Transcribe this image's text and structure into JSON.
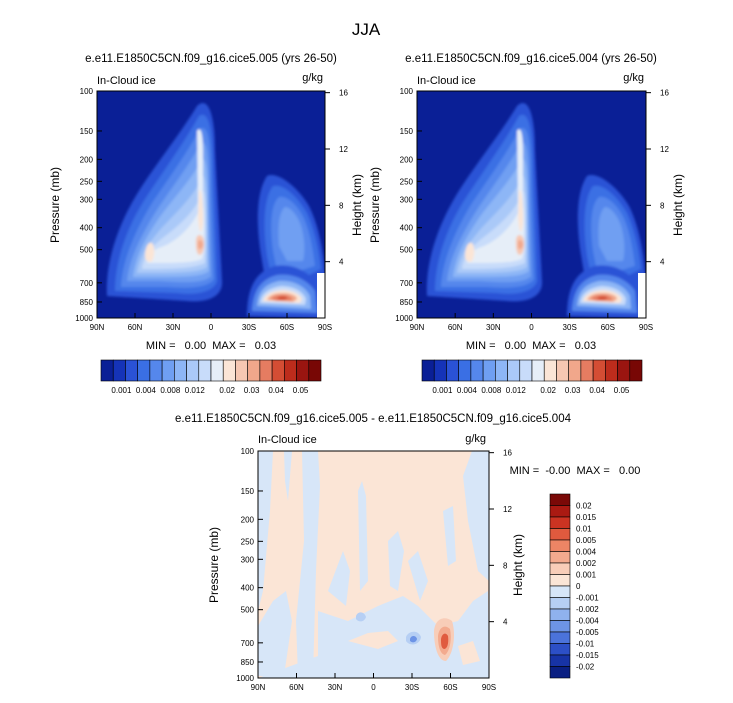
{
  "page": {
    "title": "JJA"
  },
  "panels": [
    {
      "title": "e.e11.E1850C5CN.f09_g16.cice5.005 (yrs 26-50)",
      "left_label": "In-Cloud ice",
      "right_label": "g/kg",
      "stats": "MIN =   0.00  MAX =   0.03"
    },
    {
      "title": "e.e11.E1850C5CN.f09_g16.cice5.004 (yrs 26-50)",
      "left_label": "In-Cloud ice",
      "right_label": "g/kg",
      "stats": "MIN =   0.00  MAX =   0.03"
    },
    {
      "title": "e.e11.E1850C5CN.f09_g16.cice5.005 - e.e11.E1850C5CN.f09_g16.cice5.004",
      "left_label": "In-Cloud ice",
      "right_label": "g/kg",
      "stats": "MIN =  -0.00  MAX =   0.00"
    }
  ],
  "chart_data": [
    {
      "type": "heatmap",
      "title": "e.e11.E1850C5CN.f09_g16.cice5.005 (yrs 26-50)",
      "variable": "In-Cloud ice",
      "units": "g/kg",
      "xlabel": "",
      "ylabel": "Pressure (mb)",
      "y2label": "Height (km)",
      "x_ticks": [
        "90N",
        "60N",
        "30N",
        "0",
        "30S",
        "60S",
        "90S"
      ],
      "y_ticks": [
        100,
        150,
        200,
        250,
        300,
        400,
        500,
        700,
        850,
        1000
      ],
      "y_scale": "log",
      "ylim": [
        1000,
        100
      ],
      "y2_ticks": [
        4,
        8,
        12,
        16
      ],
      "min": 0.0,
      "max": 0.03,
      "features": [
        {
          "lat": 8,
          "p": 500,
          "value": 0.012
        },
        {
          "lat": 40,
          "p": 520,
          "value": 0.011
        },
        {
          "lat": -58,
          "p": 850,
          "value": 0.03
        }
      ]
    },
    {
      "type": "heatmap",
      "title": "e.e11.E1850C5CN.f09_g16.cice5.004 (yrs 26-50)",
      "variable": "In-Cloud ice",
      "units": "g/kg",
      "xlabel": "",
      "ylabel": "Pressure (mb)",
      "y2label": "Height (km)",
      "x_ticks": [
        "90N",
        "60N",
        "30N",
        "0",
        "30S",
        "60S",
        "90S"
      ],
      "y_ticks": [
        100,
        150,
        200,
        250,
        300,
        400,
        500,
        700,
        850,
        1000
      ],
      "y_scale": "log",
      "ylim": [
        1000,
        100
      ],
      "y2_ticks": [
        4,
        8,
        12,
        16
      ],
      "min": 0.0,
      "max": 0.03,
      "features": [
        {
          "lat": 8,
          "p": 500,
          "value": 0.012
        },
        {
          "lat": 40,
          "p": 520,
          "value": 0.011
        },
        {
          "lat": -58,
          "p": 850,
          "value": 0.03
        }
      ]
    },
    {
      "type": "heatmap",
      "title": "e.e11.E1850C5CN.f09_g16.cice5.005 - e.e11.E1850C5CN.f09_g16.cice5.004",
      "variable": "In-Cloud ice",
      "units": "g/kg",
      "xlabel": "",
      "ylabel": "Pressure (mb)",
      "y2label": "Height (km)",
      "x_ticks": [
        "90N",
        "60N",
        "30N",
        "0",
        "30S",
        "60S",
        "90S"
      ],
      "y_ticks": [
        100,
        150,
        200,
        250,
        300,
        400,
        500,
        700,
        850,
        1000
      ],
      "y_scale": "log",
      "ylim": [
        1000,
        100
      ],
      "y2_ticks": [
        4,
        8,
        12,
        16
      ],
      "min": -0.0,
      "max": 0.0,
      "features": [
        {
          "lat": -58,
          "p": 800,
          "value": 0.004
        },
        {
          "lat": -35,
          "p": 780,
          "value": -0.004
        }
      ]
    }
  ],
  "colorbars": {
    "abs": {
      "labels": [
        "0.001",
        "0.004",
        "0.008",
        "0.012",
        "0.02",
        "0.03",
        "0.04",
        "0.05"
      ],
      "colors": [
        "#0a1f96",
        "#1533b8",
        "#2a52d6",
        "#3a6fe4",
        "#5587ec",
        "#6f9ff2",
        "#8db6f6",
        "#aac9f8",
        "#c8dcfa",
        "#e6eef8",
        "#fbe5d6",
        "#f6c7b2",
        "#f1a78b",
        "#e57c61",
        "#d44d34",
        "#bd2c1c",
        "#9a1510",
        "#780705"
      ]
    },
    "diff": {
      "labels": [
        "0.02",
        "0.015",
        "0.01",
        "0.005",
        "0.004",
        "0.002",
        "0.001",
        "0",
        "-0.001",
        "-0.002",
        "-0.004",
        "-0.005",
        "-0.01",
        "-0.015",
        "-0.02"
      ],
      "colors": [
        "#7a0907",
        "#aa1a12",
        "#cc3322",
        "#e05a3e",
        "#ec8565",
        "#f3aa8e",
        "#f8cdb8",
        "#fbe5d6",
        "#d7e6f8",
        "#b6cff4",
        "#8fb2ee",
        "#6d94e6",
        "#4b73db",
        "#2c4fc6",
        "#1733a6",
        "#0a1f82"
      ]
    }
  }
}
